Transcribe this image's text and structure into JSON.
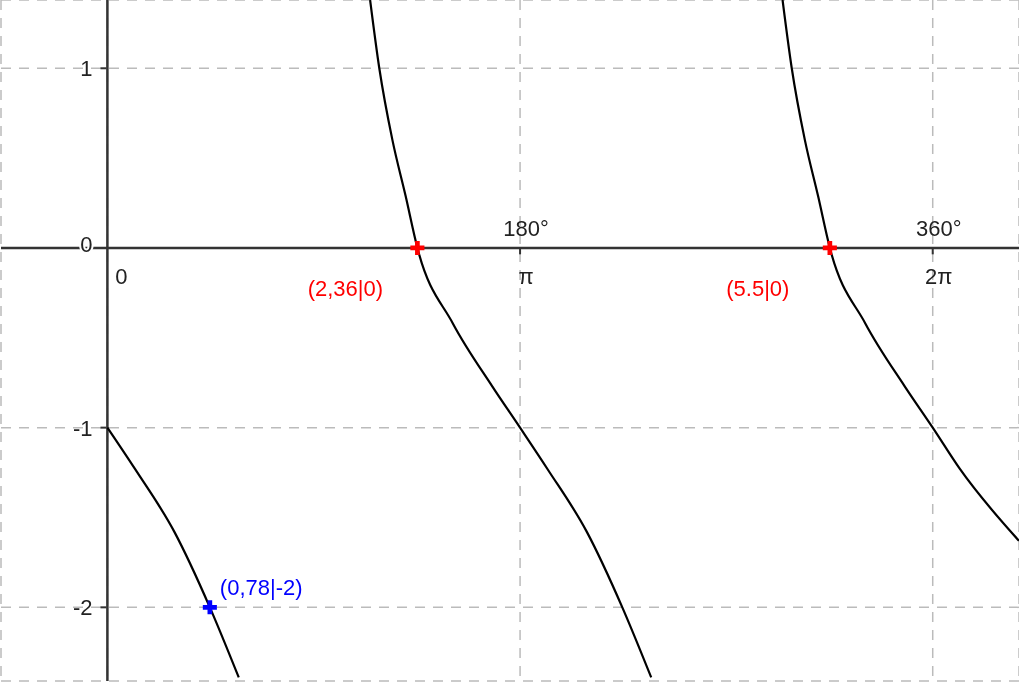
{
  "chart_data": {
    "type": "line",
    "xlim": [
      -0.81,
      6.94
    ],
    "ylim": [
      -2.41,
      1.38
    ],
    "xticks": [
      0,
      {
        "value": 3.14159,
        "label": "π"
      },
      {
        "value": 6.28319,
        "label": "2π"
      }
    ],
    "yticks": [
      -2,
      -1,
      0,
      1
    ],
    "grid": true,
    "marker": "none",
    "line_style": "solid",
    "series": [
      {
        "color": "#000000",
        "x": [
          0,
          0.21,
          0.51,
          0.78,
          1.0
        ],
        "values": [
          -1,
          -1.23,
          -1.58,
          -2,
          -2.39
        ]
      },
      {
        "color": "#000000",
        "x": [
          2.0,
          2.07,
          2.17,
          2.27,
          2.36,
          2.63,
          2.93,
          3.14159,
          3.35,
          3.65,
          3.92,
          4.14
        ],
        "values": [
          1.38,
          1,
          0.6,
          0.29,
          0,
          -0.42,
          -0.77,
          -1,
          -1.23,
          -1.58,
          -2,
          -2.39
        ]
      },
      {
        "color": "#000000",
        "x": [
          5.14,
          5.21,
          5.31,
          5.41,
          5.5,
          5.77,
          6.07,
          6.28319,
          6.49,
          6.94
        ],
        "values": [
          1.38,
          1,
          0.6,
          0.29,
          0,
          -0.42,
          -0.77,
          -1,
          -1.23,
          -1.63
        ]
      },
      {
        "type": "scatter",
        "marker": "cross",
        "color": "#ff0000",
        "x": [
          2.36,
          5.5
        ],
        "values": [
          0,
          0
        ],
        "value_labels": [
          "(2,36|0)",
          "(5.5|0)"
        ]
      },
      {
        "type": "scatter",
        "marker": "cross",
        "color": "#0000ff",
        "x": [
          0.78
        ],
        "values": [
          -2
        ],
        "value_labels": [
          "(0,78|-2)"
        ]
      }
    ],
    "x2lim": [
      -46.4,
      397.6
    ],
    "x2ticks": [
      {
        "value": 180,
        "label": "180°"
      },
      {
        "value": 360,
        "label": "360°"
      }
    ]
  }
}
